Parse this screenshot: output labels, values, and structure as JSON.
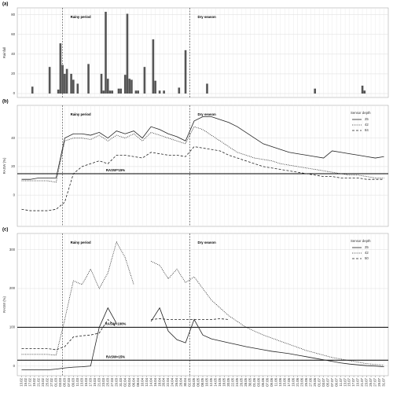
{
  "chart_data": [
    {
      "type": "bar",
      "panel": "(a)",
      "ylabel": "Rainfall",
      "xlim": [
        -2,
        170
      ],
      "ylim": [
        -4,
        87
      ],
      "yticks": [
        0,
        20,
        40,
        60,
        80
      ],
      "color": "#555555",
      "x": [
        5,
        13,
        17,
        18,
        19,
        20,
        21,
        23,
        24,
        26,
        31,
        37,
        38,
        39,
        40,
        41,
        42,
        45,
        46,
        48,
        49,
        50,
        51,
        53,
        54,
        57,
        61,
        62,
        64,
        66,
        73,
        76,
        86,
        136,
        158,
        159
      ],
      "values": [
        7,
        27,
        4,
        51,
        29,
        20,
        25,
        20,
        14,
        10,
        30,
        20,
        3,
        83,
        15,
        3,
        3,
        5,
        5,
        19,
        81,
        15,
        14,
        3,
        3,
        27,
        55,
        13,
        3,
        3,
        6,
        44,
        10,
        5,
        8,
        3
      ],
      "vlines": [
        {
          "x": 19,
          "label": "Rainy period"
        },
        {
          "x": 78,
          "label": "Dry season"
        }
      ]
    },
    {
      "type": "line",
      "panel": "(b)",
      "ylabel": "RASW (%)",
      "xlim": [
        -2,
        170
      ],
      "ylim": [
        -22,
        63
      ],
      "yticks": [
        0,
        20,
        40
      ],
      "legend_title": "Sensor depth",
      "x": [
        0,
        4,
        8,
        12,
        16,
        20,
        24,
        28,
        32,
        36,
        40,
        44,
        48,
        52,
        56,
        60,
        64,
        68,
        72,
        76,
        80,
        84,
        88,
        92,
        96,
        100,
        104,
        108,
        112,
        116,
        120,
        124,
        128,
        132,
        136,
        140,
        144,
        148,
        152,
        156,
        160,
        164,
        168
      ],
      "series": [
        {
          "name": "25",
          "color": "#222222",
          "dash": "solid",
          "values": [
            11,
            11,
            12,
            12,
            12,
            40,
            43,
            43,
            42,
            44,
            40,
            45,
            43,
            45,
            40,
            48,
            46,
            43,
            41,
            38,
            52,
            55,
            55,
            53,
            51,
            48,
            44,
            40,
            36,
            34,
            32,
            30,
            29,
            28,
            27,
            26,
            31,
            30,
            29,
            28,
            27,
            26,
            27
          ]
        },
        {
          "name": "42",
          "color": "#222222",
          "dash": "dotted",
          "values": [
            10,
            10,
            10,
            10,
            9,
            38,
            40,
            40,
            39,
            42,
            38,
            42,
            40,
            43,
            38,
            44,
            42,
            40,
            38,
            36,
            48,
            46,
            42,
            38,
            34,
            30,
            28,
            26,
            25,
            24,
            22,
            21,
            20,
            19,
            18,
            17,
            16,
            15,
            14,
            14,
            13,
            12,
            12
          ]
        },
        {
          "name": "84",
          "color": "#222222",
          "dash": "dashed",
          "values": [
            -10,
            -11,
            -11,
            -11,
            -10,
            -5,
            15,
            20,
            22,
            24,
            22,
            28,
            28,
            27,
            26,
            30,
            29,
            28,
            28,
            27,
            34,
            33,
            32,
            31,
            28,
            26,
            24,
            22,
            20,
            19,
            18,
            17,
            16,
            15,
            14,
            13,
            13,
            12,
            12,
            12,
            11,
            11,
            11
          ]
        }
      ],
      "hlines": [
        {
          "y": 15,
          "label": "RASW=15%"
        }
      ],
      "vlines": [
        {
          "x": 19,
          "label": "Rainy period"
        },
        {
          "x": 78,
          "label": "Dry season"
        }
      ]
    },
    {
      "type": "line",
      "panel": "(c)",
      "ylabel": "RASW (%)",
      "xlim": [
        -2,
        170
      ],
      "ylim": [
        -25,
        342
      ],
      "yticks": [
        0,
        100,
        200,
        300
      ],
      "legend_title": "Sensor depth",
      "x": [
        0,
        4,
        8,
        12,
        16,
        20,
        24,
        28,
        32,
        36,
        40,
        44,
        48,
        52,
        56,
        60,
        64,
        68,
        72,
        76,
        80,
        84,
        88,
        92,
        96,
        100,
        104,
        108,
        112,
        116,
        120,
        124,
        128,
        132,
        136,
        140,
        144,
        148,
        152,
        156,
        160,
        164,
        168
      ],
      "xticks": [
        {
          "value": 0,
          "label": "13.02"
        },
        {
          "value": 2,
          "label": "15.02"
        },
        {
          "value": 4,
          "label": "17.02"
        },
        {
          "value": 6,
          "label": "19.02"
        },
        {
          "value": 8,
          "label": "21.02"
        },
        {
          "value": 10,
          "label": "23.02"
        },
        {
          "value": 12,
          "label": "25.02"
        },
        {
          "value": 14,
          "label": "27.02"
        },
        {
          "value": 16,
          "label": "01.03"
        },
        {
          "value": 18,
          "label": "03.03"
        },
        {
          "value": 20,
          "label": "05.03"
        },
        {
          "value": 22,
          "label": "07.03"
        },
        {
          "value": 24,
          "label": "09.03"
        },
        {
          "value": 26,
          "label": "11.03"
        },
        {
          "value": 28,
          "label": "13.03"
        },
        {
          "value": 30,
          "label": "15.03"
        },
        {
          "value": 32,
          "label": "17.03"
        },
        {
          "value": 34,
          "label": "19.03"
        },
        {
          "value": 36,
          "label": "21.03"
        },
        {
          "value": 38,
          "label": "23.03"
        },
        {
          "value": 40,
          "label": "25.03"
        },
        {
          "value": 42,
          "label": "27.03"
        },
        {
          "value": 44,
          "label": "29.03"
        },
        {
          "value": 46,
          "label": "31.03"
        },
        {
          "value": 48,
          "label": "02.04"
        },
        {
          "value": 50,
          "label": "04.04"
        },
        {
          "value": 52,
          "label": "06.04"
        },
        {
          "value": 54,
          "label": "08.04"
        },
        {
          "value": 56,
          "label": "10.04"
        },
        {
          "value": 58,
          "label": "12.04"
        },
        {
          "value": 60,
          "label": "14.04"
        },
        {
          "value": 62,
          "label": "16.04"
        },
        {
          "value": 64,
          "label": "18.04"
        },
        {
          "value": 66,
          "label": "20.04"
        },
        {
          "value": 68,
          "label": "22.04"
        },
        {
          "value": 70,
          "label": "24.04"
        },
        {
          "value": 72,
          "label": "26.04"
        },
        {
          "value": 74,
          "label": "28.04"
        },
        {
          "value": 76,
          "label": "30.04"
        },
        {
          "value": 78,
          "label": "02.05"
        },
        {
          "value": 80,
          "label": "04.05"
        },
        {
          "value": 82,
          "label": "06.05"
        },
        {
          "value": 84,
          "label": "08.05"
        },
        {
          "value": 86,
          "label": "10.05"
        },
        {
          "value": 88,
          "label": "12.05"
        },
        {
          "value": 90,
          "label": "14.05"
        },
        {
          "value": 92,
          "label": "16.05"
        },
        {
          "value": 94,
          "label": "18.05"
        },
        {
          "value": 96,
          "label": "20.05"
        },
        {
          "value": 98,
          "label": "22.05"
        },
        {
          "value": 100,
          "label": "24.05"
        },
        {
          "value": 102,
          "label": "26.05"
        },
        {
          "value": 104,
          "label": "28.05"
        },
        {
          "value": 106,
          "label": "30.05"
        },
        {
          "value": 108,
          "label": "01.06"
        },
        {
          "value": 110,
          "label": "03.06"
        },
        {
          "value": 112,
          "label": "05.06"
        },
        {
          "value": 114,
          "label": "07.06"
        },
        {
          "value": 116,
          "label": "09.06"
        },
        {
          "value": 118,
          "label": "11.06"
        },
        {
          "value": 120,
          "label": "13.06"
        },
        {
          "value": 122,
          "label": "15.06"
        },
        {
          "value": 124,
          "label": "17.06"
        },
        {
          "value": 126,
          "label": "19.06"
        },
        {
          "value": 128,
          "label": "21.06"
        },
        {
          "value": 130,
          "label": "23.06"
        },
        {
          "value": 132,
          "label": "25.06"
        },
        {
          "value": 134,
          "label": "27.06"
        },
        {
          "value": 136,
          "label": "29.06"
        },
        {
          "value": 138,
          "label": "01.07"
        },
        {
          "value": 140,
          "label": "03.07"
        },
        {
          "value": 142,
          "label": "05.07"
        },
        {
          "value": 144,
          "label": "07.07"
        },
        {
          "value": 146,
          "label": "09.07"
        },
        {
          "value": 148,
          "label": "11.07"
        },
        {
          "value": 150,
          "label": "13.07"
        },
        {
          "value": 152,
          "label": "15.07"
        },
        {
          "value": 154,
          "label": "17.07"
        },
        {
          "value": 156,
          "label": "19.07"
        },
        {
          "value": 158,
          "label": "21.07"
        },
        {
          "value": 160,
          "label": "23.07"
        },
        {
          "value": 162,
          "label": "25.07"
        },
        {
          "value": 164,
          "label": "27.07"
        },
        {
          "value": 166,
          "label": "29.07"
        },
        {
          "value": 168,
          "label": "31.07"
        }
      ],
      "series": [
        {
          "name": "25",
          "color": "#222222",
          "dash": "solid",
          "values": [
            -10,
            -10,
            -10,
            -10,
            -8,
            -5,
            -3,
            -2,
            0,
            100,
            150,
            110,
            null,
            null,
            null,
            115,
            150,
            90,
            68,
            60,
            120,
            80,
            70,
            65,
            60,
            55,
            50,
            46,
            42,
            38,
            35,
            32,
            28,
            24,
            20,
            16,
            12,
            8,
            5,
            3,
            1,
            0,
            -2
          ]
        },
        {
          "name": "42",
          "color": "#222222",
          "dash": "dotted",
          "values": [
            30,
            30,
            30,
            30,
            28,
            120,
            220,
            210,
            250,
            200,
            240,
            320,
            280,
            210,
            null,
            270,
            260,
            225,
            250,
            215,
            230,
            200,
            170,
            150,
            130,
            115,
            100,
            90,
            80,
            72,
            64,
            56,
            48,
            40,
            34,
            28,
            22,
            18,
            14,
            10,
            6,
            4,
            2
          ]
        },
        {
          "name": "50",
          "color": "#222222",
          "dash": "dashed",
          "values": [
            45,
            45,
            45,
            45,
            42,
            50,
            75,
            78,
            80,
            85,
            120,
            100,
            null,
            null,
            null,
            120,
            122,
            120,
            120,
            120,
            120,
            120,
            120,
            122,
            120,
            null,
            null,
            null,
            null,
            null,
            null,
            null,
            null,
            null,
            null,
            null,
            null,
            null,
            null,
            null,
            null,
            null,
            null
          ]
        }
      ],
      "hlines": [
        {
          "y": 100,
          "label": "RASW=100%"
        },
        {
          "y": 15,
          "label": "RASW=15%"
        }
      ],
      "vlines": [
        {
          "x": 19,
          "label": "Rainy period"
        },
        {
          "x": 78,
          "label": "Dry season"
        }
      ]
    }
  ]
}
